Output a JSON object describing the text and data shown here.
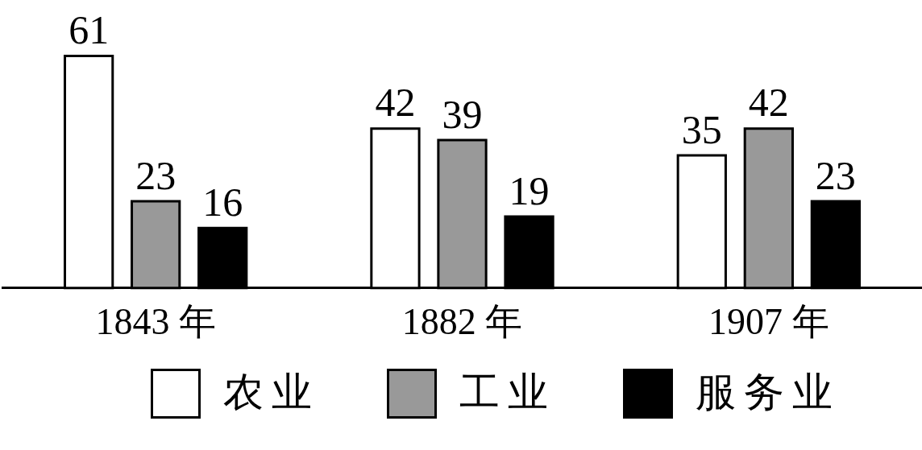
{
  "chart_data": {
    "type": "bar",
    "categories": [
      "1843 年",
      "1882 年",
      "1907 年"
    ],
    "series": [
      {
        "name": "农业",
        "color": "#ffffff",
        "values": [
          61,
          42,
          35
        ]
      },
      {
        "name": "工业",
        "color": "#999999",
        "values": [
          23,
          39,
          42
        ]
      },
      {
        "name": "服务业",
        "color": "#000000",
        "values": [
          16,
          19,
          23
        ]
      }
    ],
    "data_labels": true,
    "legend": "bottom",
    "grid": false,
    "tick_labels": "x"
  }
}
